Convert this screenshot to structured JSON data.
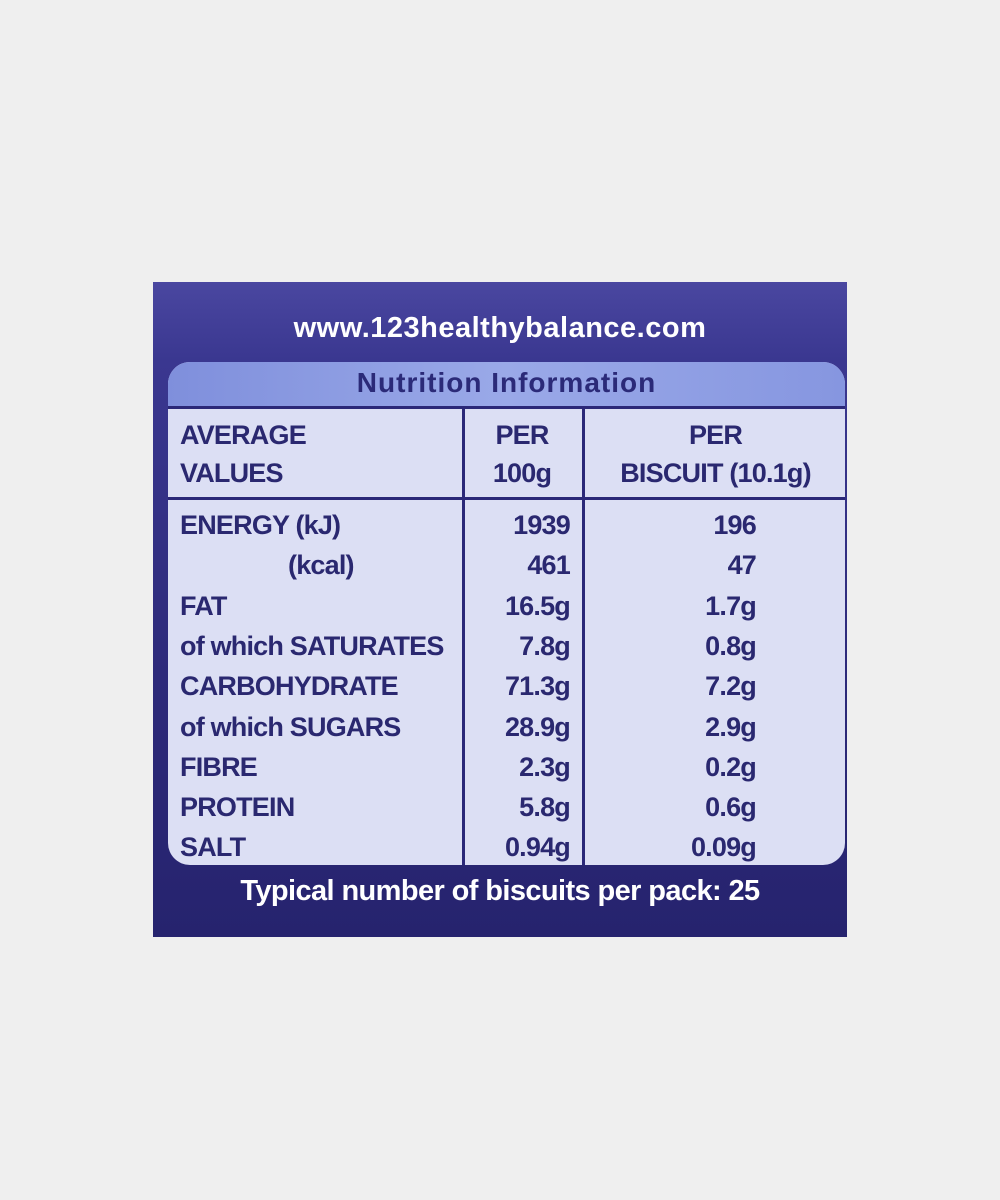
{
  "url": "www.123healthybalance.com",
  "title": "Nutrition Information",
  "header": {
    "col1": [
      "AVERAGE",
      "VALUES"
    ],
    "col2": [
      "PER",
      "100g"
    ],
    "col3": [
      "PER",
      "BISCUIT (10.1g)"
    ]
  },
  "rows": [
    {
      "label": "ENERGY (kJ)",
      "per100g": "1939",
      "perBiscuit": "196"
    },
    {
      "label": "(kcal)",
      "per100g": "461",
      "perBiscuit": "47"
    },
    {
      "label": "FAT",
      "per100g": "16.5g",
      "perBiscuit": "1.7g"
    },
    {
      "label": "of which SATURATES",
      "per100g": "7.8g",
      "perBiscuit": "0.8g"
    },
    {
      "label": "CARBOHYDRATE",
      "per100g": "71.3g",
      "perBiscuit": "7.2g"
    },
    {
      "label": "of which SUGARS",
      "per100g": "28.9g",
      "perBiscuit": "2.9g"
    },
    {
      "label": "FIBRE",
      "per100g": "2.3g",
      "perBiscuit": "0.2g"
    },
    {
      "label": "PROTEIN",
      "per100g": "5.8g",
      "perBiscuit": "0.6g"
    },
    {
      "label": "SALT",
      "per100g": "0.94g",
      "perBiscuit": "0.09g"
    }
  ],
  "footer": "Typical number of biscuits per pack: 25",
  "colors": {
    "background": "#efefef",
    "pack": "#2d2a7a",
    "table": "#dcdff4",
    "text": "#2a2870"
  }
}
